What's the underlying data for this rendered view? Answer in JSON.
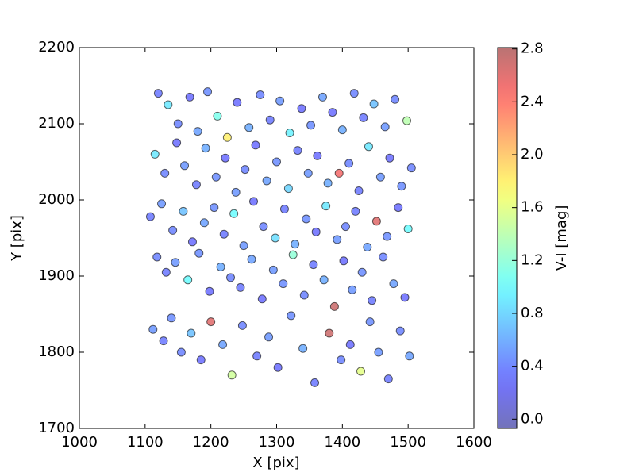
{
  "chart_data": {
    "type": "scatter",
    "x_label": "X [pix]",
    "y_label": "Y [pix]",
    "colorbar_label": "V-I [mag]",
    "colormap": "jet",
    "xlim": [
      1000,
      1600
    ],
    "xticks": [
      1000,
      1100,
      1200,
      1300,
      1400,
      1500,
      1600
    ],
    "ylim": [
      1700,
      2200
    ],
    "yticks": [
      1700,
      1800,
      1900,
      2000,
      2100,
      2200
    ],
    "clim": [
      -0.07,
      2.81
    ],
    "cticks": [
      {
        "value": 0,
        "label": "0.0"
      },
      0.4,
      0.8,
      1.2,
      1.6,
      {
        "value": 2,
        "label": "2.0"
      },
      2.4,
      2.8
    ],
    "x": [
      1120,
      1135,
      1150,
      1168,
      1180,
      1195,
      1210,
      1225,
      1240,
      1258,
      1275,
      1290,
      1305,
      1320,
      1338,
      1352,
      1370,
      1385,
      1400,
      1418,
      1432,
      1448,
      1465,
      1480,
      1498,
      1115,
      1130,
      1148,
      1160,
      1178,
      1192,
      1208,
      1222,
      1238,
      1252,
      1268,
      1285,
      1300,
      1318,
      1332,
      1348,
      1362,
      1378,
      1395,
      1410,
      1425,
      1440,
      1458,
      1472,
      1490,
      1505,
      1108,
      1125,
      1142,
      1158,
      1172,
      1190,
      1205,
      1220,
      1235,
      1250,
      1265,
      1280,
      1298,
      1312,
      1328,
      1345,
      1360,
      1375,
      1392,
      1405,
      1420,
      1438,
      1452,
      1468,
      1485,
      1500,
      1118,
      1132,
      1146,
      1165,
      1182,
      1198,
      1215,
      1230,
      1245,
      1262,
      1278,
      1295,
      1310,
      1325,
      1342,
      1356,
      1372,
      1388,
      1402,
      1415,
      1430,
      1445,
      1462,
      1478,
      1495,
      1112,
      1128,
      1140,
      1155,
      1170,
      1185,
      1200,
      1218,
      1232,
      1248,
      1270,
      1288,
      1302,
      1322,
      1340,
      1358,
      1380,
      1398,
      1412,
      1428,
      1442,
      1455,
      1470,
      1488,
      1502
    ],
    "values": [
      2140,
      2125,
      2100,
      2135,
      2090,
      2142,
      2110,
      2082,
      2128,
      2095,
      2138,
      2105,
      2130,
      2088,
      2120,
      2098,
      2135,
      2115,
      2092,
      2140,
      2108,
      2126,
      2096,
      2132,
      2104,
      2060,
      2035,
      2075,
      2045,
      2020,
      2068,
      2030,
      2055,
      2010,
      2040,
      2072,
      2025,
      2050,
      2015,
      2065,
      2035,
      2058,
      2022,
      2035,
      2048,
      2012,
      2070,
      2030,
      2055,
      2018,
      2042,
      1978,
      1995,
      1960,
      1985,
      1945,
      1970,
      1990,
      1955,
      1982,
      1940,
      1998,
      1965,
      1950,
      1988,
      1942,
      1975,
      1958,
      1992,
      1948,
      1965,
      1985,
      1938,
      1972,
      1952,
      1990,
      1962,
      1925,
      1905,
      1918,
      1895,
      1930,
      1880,
      1912,
      1898,
      1885,
      1922,
      1870,
      1908,
      1890,
      1928,
      1875,
      1915,
      1895,
      1860,
      1920,
      1882,
      1905,
      1868,
      1925,
      1890,
      1872,
      1830,
      1815,
      1845,
      1800,
      1825,
      1790,
      1840,
      1810,
      1770,
      1835,
      1795,
      1820,
      1780,
      1848,
      1805,
      1760,
      1825,
      1790,
      1810,
      1775,
      1840,
      1800,
      1765,
      1828,
      1795
    ],
    "color_values": [
      0.35,
      0.9,
      0.4,
      0.3,
      0.55,
      0.45,
      1.1,
      1.8,
      0.3,
      0.6,
      0.4,
      0.35,
      0.5,
      0.95,
      0.3,
      0.45,
      0.55,
      0.3,
      0.6,
      0.4,
      0.35,
      0.7,
      0.5,
      0.4,
      1.4,
      0.9,
      0.4,
      0.3,
      0.5,
      0.35,
      0.6,
      0.45,
      0.3,
      0.5,
      0.4,
      0.3,
      0.55,
      0.45,
      0.8,
      0.35,
      0.5,
      0.3,
      0.6,
      2.5,
      0.4,
      0.35,
      0.9,
      0.5,
      0.3,
      0.45,
      0.4,
      0.35,
      0.5,
      0.4,
      0.7,
      0.3,
      0.55,
      0.45,
      0.35,
      1.0,
      0.5,
      0.3,
      0.4,
      0.85,
      0.35,
      0.6,
      0.45,
      0.3,
      0.9,
      0.5,
      0.4,
      0.35,
      0.55,
      2.6,
      0.45,
      0.3,
      1.0,
      0.4,
      0.35,
      0.5,
      1.0,
      0.45,
      0.3,
      0.6,
      0.4,
      0.35,
      0.55,
      0.3,
      0.5,
      0.45,
      1.2,
      0.4,
      0.35,
      0.6,
      2.7,
      0.3,
      0.5,
      0.45,
      0.35,
      0.4,
      0.55,
      0.3,
      0.5,
      0.35,
      0.45,
      0.4,
      0.7,
      0.3,
      2.6,
      0.55,
      1.5,
      0.4,
      0.35,
      0.5,
      0.3,
      0.45,
      0.6,
      0.35,
      2.7,
      0.4,
      0.3,
      1.6,
      0.45,
      0.5,
      0.35,
      0.4,
      0.55
    ]
  }
}
